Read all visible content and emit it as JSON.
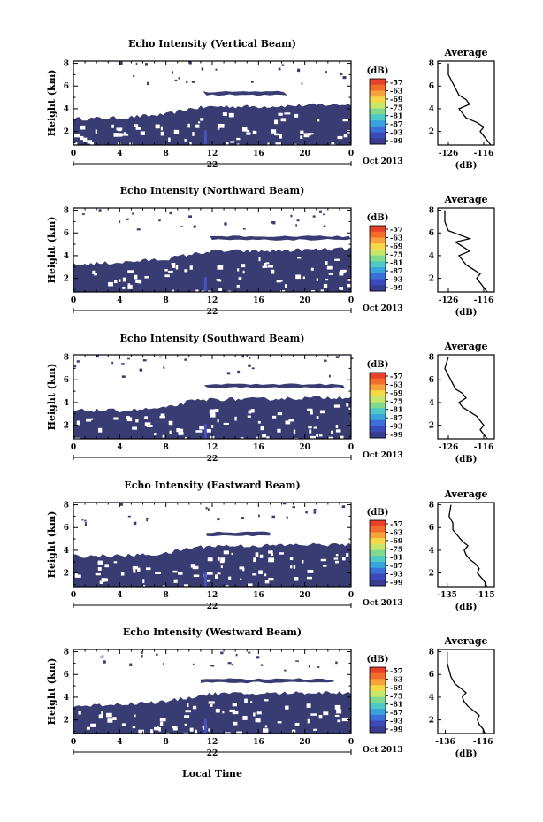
{
  "figure": {
    "xaxis_label": "Local Time",
    "date_label": "Oct 2013",
    "day_label": "22"
  },
  "colorbar": {
    "unit": "(dB)",
    "ticks": [
      "-57",
      "-63",
      "-69",
      "-75",
      "-81",
      "-87",
      "-93",
      "-99"
    ],
    "colors": [
      "#e8412a",
      "#f26c2b",
      "#f7a23a",
      "#f5d84a",
      "#c6e86a",
      "#7fd98f",
      "#4fc9c4",
      "#38a3dd",
      "#3d6fd8",
      "#3a4ab8",
      "#383c8f"
    ]
  },
  "colors": {
    "echo_fill": "#383c72",
    "echo_core": "#4a52c0"
  },
  "panels": [
    {
      "title": "Echo Intensity (Vertical Beam)",
      "avg_title": "Average",
      "avg_xticks": [
        "-126",
        "-116"
      ],
      "avg_xlabel": "(dB)",
      "ylabel": "Height (km)",
      "xticks": [
        "0",
        "4",
        "8",
        "12",
        "16",
        "20",
        "0"
      ],
      "yticks": [
        "2",
        "4",
        "6",
        "8"
      ],
      "chart_data": {
        "type": "heatmap",
        "x_range_hours": [
          0,
          24
        ],
        "y_range_km": [
          0.8,
          8.2
        ],
        "lower_layer_top_km": [
          [
            0,
            3.1
          ],
          [
            4,
            3.2
          ],
          [
            8,
            3.5
          ],
          [
            10,
            4.0
          ],
          [
            12,
            4.2
          ],
          [
            16,
            4.2
          ],
          [
            20,
            4.3
          ],
          [
            24,
            4.4
          ]
        ],
        "upper_band": {
          "start_h": 11.2,
          "end_h": 18.5,
          "bottom_km": 5.2,
          "top_km": 5.5
        },
        "average_profile": {
          "x_db": [
            -114,
            -115,
            -116,
            -117,
            -116,
            -118,
            -121,
            -122,
            -123,
            -120,
            -121,
            -123,
            -124,
            -125,
            -126,
            -126
          ],
          "height_km": [
            0.8,
            1.2,
            1.6,
            2.0,
            2.4,
            2.8,
            3.2,
            3.6,
            4.0,
            4.4,
            4.8,
            5.2,
            5.8,
            6.4,
            7.0,
            8.0
          ],
          "x_range": [
            -129,
            -113
          ]
        }
      }
    },
    {
      "title": "Echo Intensity (Northward Beam)",
      "avg_title": "Average",
      "avg_xticks": [
        "-126",
        "-116"
      ],
      "avg_xlabel": "(dB)",
      "ylabel": "Height (km)",
      "xticks": [
        "0",
        "4",
        "8",
        "12",
        "16",
        "20",
        "0"
      ],
      "yticks": [
        "2",
        "4",
        "6",
        "8"
      ],
      "chart_data": {
        "type": "heatmap",
        "x_range_hours": [
          0,
          24
        ],
        "y_range_km": [
          0.8,
          8.2
        ],
        "lower_layer_top_km": [
          [
            0,
            3.2
          ],
          [
            4,
            3.4
          ],
          [
            8,
            3.7
          ],
          [
            10,
            4.1
          ],
          [
            12,
            4.4
          ],
          [
            16,
            4.4
          ],
          [
            20,
            4.5
          ],
          [
            24,
            4.6
          ]
        ],
        "upper_band": {
          "start_h": 11.8,
          "end_h": 24,
          "bottom_km": 5.4,
          "top_km": 5.7
        },
        "average_profile": {
          "x_db": [
            -115,
            -116,
            -117,
            -118,
            -117,
            -119,
            -121,
            -122,
            -123,
            -120,
            -122,
            -124,
            -120,
            -126,
            -127,
            -127
          ],
          "height_km": [
            0.8,
            1.2,
            1.6,
            2.0,
            2.4,
            2.8,
            3.2,
            3.6,
            4.0,
            4.4,
            4.8,
            5.2,
            5.5,
            6.2,
            7.0,
            8.0
          ],
          "x_range": [
            -129,
            -113
          ]
        }
      }
    },
    {
      "title": "Echo Intensity (Southward Beam)",
      "avg_title": "Average",
      "avg_xticks": [
        "-126",
        "-116"
      ],
      "avg_xlabel": "(dB)",
      "ylabel": "Height (km)",
      "xticks": [
        "0",
        "4",
        "8",
        "12",
        "16",
        "20",
        "0"
      ],
      "yticks": [
        "2",
        "4",
        "6",
        "8"
      ],
      "chart_data": {
        "type": "heatmap",
        "x_range_hours": [
          0,
          24
        ],
        "y_range_km": [
          0.8,
          8.2
        ],
        "lower_layer_top_km": [
          [
            0,
            3.3
          ],
          [
            4,
            3.3
          ],
          [
            8,
            3.5
          ],
          [
            10,
            4.1
          ],
          [
            12,
            4.3
          ],
          [
            16,
            4.3
          ],
          [
            20,
            4.4
          ],
          [
            24,
            4.5
          ]
        ],
        "upper_band": {
          "start_h": 11.3,
          "end_h": 23.5,
          "bottom_km": 5.3,
          "top_km": 5.6
        },
        "average_profile": {
          "x_db": [
            -115,
            -116,
            -117,
            -116,
            -117,
            -118,
            -120,
            -122,
            -123,
            -121,
            -122,
            -124,
            -125,
            -126,
            -127,
            -126
          ],
          "height_km": [
            0.8,
            1.2,
            1.6,
            2.0,
            2.4,
            2.8,
            3.2,
            3.6,
            4.0,
            4.4,
            4.8,
            5.2,
            5.8,
            6.4,
            7.0,
            8.0
          ],
          "x_range": [
            -129,
            -113
          ]
        }
      }
    },
    {
      "title": "Echo Intensity (Eastward Beam)",
      "avg_title": "Average",
      "avg_xticks": [
        "-135",
        "-115"
      ],
      "avg_xlabel": "(dB)",
      "ylabel": "Height (km)",
      "xticks": [
        "0",
        "4",
        "8",
        "12",
        "16",
        "20",
        "0"
      ],
      "yticks": [
        "2",
        "4",
        "6",
        "8"
      ],
      "chart_data": {
        "type": "heatmap",
        "x_range_hours": [
          0,
          24
        ],
        "y_range_km": [
          0.8,
          8.2
        ],
        "lower_layer_top_km": [
          [
            0,
            3.5
          ],
          [
            4,
            3.5
          ],
          [
            8,
            3.7
          ],
          [
            10,
            4.2
          ],
          [
            12,
            4.4
          ],
          [
            16,
            4.4
          ],
          [
            20,
            4.5
          ],
          [
            24,
            4.5
          ]
        ],
        "upper_band": {
          "start_h": 11.5,
          "end_h": 17.0,
          "bottom_km": 5.3,
          "top_km": 5.6
        },
        "average_profile": {
          "x_db": [
            -114,
            -115,
            -117,
            -119,
            -118,
            -120,
            -123,
            -125,
            -126,
            -124,
            -127,
            -129,
            -132,
            -132,
            -134,
            -133
          ],
          "height_km": [
            0.8,
            1.2,
            1.6,
            2.0,
            2.4,
            2.8,
            3.2,
            3.6,
            4.0,
            4.4,
            4.8,
            5.2,
            5.8,
            6.4,
            7.0,
            8.0
          ],
          "x_range": [
            -140,
            -110
          ]
        }
      }
    },
    {
      "title": "Echo Intensity (Westward Beam)",
      "avg_title": "Average",
      "avg_xticks": [
        "-136",
        "-116"
      ],
      "avg_xlabel": "(dB)",
      "ylabel": "Height (km)",
      "xticks": [
        "0",
        "4",
        "8",
        "12",
        "16",
        "20",
        "0"
      ],
      "yticks": [
        "2",
        "4",
        "6",
        "8"
      ],
      "chart_data": {
        "type": "heatmap",
        "x_range_hours": [
          0,
          24
        ],
        "y_range_km": [
          0.8,
          8.2
        ],
        "lower_layer_top_km": [
          [
            0,
            3.2
          ],
          [
            4,
            3.4
          ],
          [
            8,
            3.6
          ],
          [
            10,
            4.0
          ],
          [
            12,
            4.3
          ],
          [
            16,
            4.3
          ],
          [
            20,
            4.4
          ],
          [
            24,
            4.4
          ]
        ],
        "upper_band": {
          "start_h": 11.0,
          "end_h": 22.5,
          "bottom_km": 5.3,
          "top_km": 5.6
        },
        "average_profile": {
          "x_db": [
            -115,
            -116,
            -118,
            -119,
            -118,
            -121,
            -124,
            -126,
            -127,
            -125,
            -128,
            -131,
            -133,
            -134,
            -135,
            -135
          ],
          "height_km": [
            0.8,
            1.2,
            1.6,
            2.0,
            2.4,
            2.8,
            3.2,
            3.6,
            4.0,
            4.4,
            4.8,
            5.2,
            5.8,
            6.4,
            7.0,
            8.0
          ],
          "x_range": [
            -140,
            -110
          ]
        }
      }
    }
  ]
}
